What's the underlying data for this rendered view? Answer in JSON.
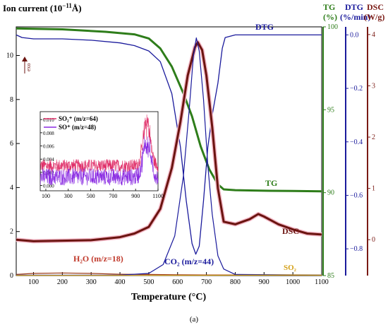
{
  "chart_data": {
    "type": "line",
    "panel_label": "(a)",
    "xlabel": "Temperature (°C)",
    "xlim": [
      40,
      1100
    ],
    "x_ticks": [
      100,
      200,
      300,
      400,
      500,
      600,
      700,
      800,
      900,
      1000,
      1100
    ],
    "axes": {
      "ion": {
        "label": "Ion current  (10",
        "label_sup": "−11",
        "label_tail": "Å)",
        "color": "#000000",
        "ylim": [
          0,
          11.3
        ],
        "ticks": [
          0,
          2,
          4,
          6,
          8,
          10
        ]
      },
      "tg": {
        "label_top": "TG",
        "label_bottom": "(%)",
        "color": "#2e7d1a",
        "ylim": [
          85,
          100
        ],
        "ticks": [
          85,
          90,
          95,
          100
        ]
      },
      "dtg": {
        "label_top": "DTG",
        "label_bottom": "(%/min)",
        "color": "#1a1a9c",
        "ylim": [
          -0.9,
          0.03
        ],
        "ticks": [
          -0.8,
          -0.6,
          -0.4,
          -0.2,
          0.0
        ]
      },
      "dsc": {
        "label_top": "DSC",
        "label_bottom": "(W/g)",
        "color": "#7a1a14",
        "ylim": [
          -0.7,
          4.15
        ],
        "ticks": [
          0,
          1,
          2,
          3,
          4
        ]
      }
    },
    "series": [
      {
        "name": "TG",
        "axis": "tg",
        "color": "#2e7d1a",
        "points": [
          [
            40,
            99.9
          ],
          [
            200,
            99.85
          ],
          [
            350,
            99.7
          ],
          [
            450,
            99.55
          ],
          [
            500,
            99.3
          ],
          [
            540,
            98.7
          ],
          [
            580,
            97.6
          ],
          [
            620,
            96.0
          ],
          [
            650,
            94.6
          ],
          [
            680,
            92.8
          ],
          [
            710,
            91.4
          ],
          [
            740,
            90.5
          ],
          [
            760,
            90.2
          ],
          [
            800,
            90.15
          ],
          [
            900,
            90.12
          ],
          [
            1000,
            90.1
          ],
          [
            1100,
            90.08
          ]
        ]
      },
      {
        "name": "DTG",
        "axis": "dtg",
        "color": "#1a1a9c",
        "points": [
          [
            40,
            0.0
          ],
          [
            60,
            -0.01
          ],
          [
            100,
            -0.015
          ],
          [
            200,
            -0.015
          ],
          [
            300,
            -0.02
          ],
          [
            400,
            -0.03
          ],
          [
            450,
            -0.04
          ],
          [
            500,
            -0.06
          ],
          [
            540,
            -0.1
          ],
          [
            580,
            -0.22
          ],
          [
            610,
            -0.42
          ],
          [
            630,
            -0.62
          ],
          [
            650,
            -0.78
          ],
          [
            663,
            -0.82
          ],
          [
            675,
            -0.79
          ],
          [
            690,
            -0.62
          ],
          [
            705,
            -0.42
          ],
          [
            720,
            -0.3
          ],
          [
            740,
            -0.18
          ],
          [
            755,
            -0.05
          ],
          [
            765,
            -0.01
          ],
          [
            800,
            0.0
          ],
          [
            900,
            0.0
          ],
          [
            1000,
            0.0
          ],
          [
            1100,
            0.0
          ]
        ]
      },
      {
        "name": "DSC",
        "axis": "dsc",
        "color": "#6b1410",
        "points": [
          [
            40,
            0.0
          ],
          [
            100,
            -0.03
          ],
          [
            200,
            -0.02
          ],
          [
            300,
            -0.01
          ],
          [
            400,
            0.05
          ],
          [
            450,
            0.12
          ],
          [
            500,
            0.25
          ],
          [
            540,
            0.6
          ],
          [
            580,
            1.4
          ],
          [
            610,
            2.3
          ],
          [
            635,
            3.2
          ],
          [
            660,
            3.75
          ],
          [
            670,
            3.85
          ],
          [
            685,
            3.7
          ],
          [
            700,
            3.2
          ],
          [
            720,
            2.2
          ],
          [
            740,
            1.0
          ],
          [
            760,
            0.35
          ],
          [
            800,
            0.3
          ],
          [
            850,
            0.4
          ],
          [
            880,
            0.5
          ],
          [
            900,
            0.45
          ],
          [
            950,
            0.3
          ],
          [
            1000,
            0.2
          ],
          [
            1050,
            0.12
          ],
          [
            1100,
            0.1
          ]
        ]
      },
      {
        "name": "H₂O (m/z=18)",
        "axis": "ion",
        "color": "#9b3a1a",
        "points": [
          [
            40,
            0.05
          ],
          [
            100,
            0.1
          ],
          [
            200,
            0.12
          ],
          [
            300,
            0.1
          ],
          [
            400,
            0.06
          ],
          [
            500,
            0.05
          ],
          [
            600,
            0.04
          ],
          [
            700,
            0.03
          ],
          [
            800,
            0.03
          ],
          [
            900,
            0.02
          ],
          [
            1000,
            0.02
          ],
          [
            1100,
            0.02
          ]
        ]
      },
      {
        "name": "CO₂ (m/z=44)",
        "axis": "ion",
        "color": "#1a1a9c",
        "points": [
          [
            40,
            0.02
          ],
          [
            400,
            0.02
          ],
          [
            500,
            0.1
          ],
          [
            550,
            0.5
          ],
          [
            590,
            1.8
          ],
          [
            620,
            4.5
          ],
          [
            640,
            7.5
          ],
          [
            655,
            10.0
          ],
          [
            665,
            10.8
          ],
          [
            675,
            10.2
          ],
          [
            690,
            8.0
          ],
          [
            705,
            5.0
          ],
          [
            720,
            2.8
          ],
          [
            740,
            0.9
          ],
          [
            760,
            0.3
          ],
          [
            800,
            0.05
          ],
          [
            1100,
            0.03
          ]
        ]
      },
      {
        "name": "SO₂",
        "axis": "ion",
        "color": "#d4a017",
        "points": [
          [
            40,
            0.01
          ],
          [
            300,
            0.01
          ],
          [
            600,
            0.01
          ],
          [
            900,
            0.02
          ],
          [
            1000,
            0.03
          ],
          [
            1100,
            0.02
          ]
        ]
      }
    ],
    "annotations": [
      {
        "text": "DTG",
        "color": "#1a1a9c"
      },
      {
        "text": "TG",
        "color": "#2e7d1a"
      },
      {
        "text": "DSC",
        "color": "#6b1410"
      },
      {
        "text": "H₂O (m/z=18)",
        "color": "#c0392b"
      },
      {
        "text": "CO₂ (m/z=44)",
        "color": "#1a1a9c"
      },
      {
        "text": "SO₂",
        "color": "#d4a017"
      },
      {
        "text": "exo",
        "color": "#6b1410"
      }
    ],
    "inset": {
      "type": "line",
      "xlim": [
        50,
        1100
      ],
      "ylim": [
        -0.0008,
        0.0112
      ],
      "x_ticks": [
        100,
        300,
        500,
        700,
        900,
        1100
      ],
      "y_ticks": [
        0.0,
        0.002,
        0.004,
        0.006,
        0.008,
        0.01
      ],
      "y_tick_labels": [
        "0.000",
        "0.002",
        "0.004",
        "0.006",
        "0.008",
        "0.010"
      ],
      "series": [
        {
          "name": "SO₂⁺ (m/z=64)",
          "color": "#e0306a",
          "baseline": 0.003,
          "noise": 0.001,
          "peak": {
            "x": 1000,
            "height": 0.0065,
            "width": 45
          }
        },
        {
          "name": "SO⁺ (m/z=48)",
          "color": "#8a2be2",
          "baseline": 0.0013,
          "noise": 0.0013,
          "peak": {
            "x": 1000,
            "height": 0.0055,
            "width": 45
          }
        }
      ]
    }
  }
}
